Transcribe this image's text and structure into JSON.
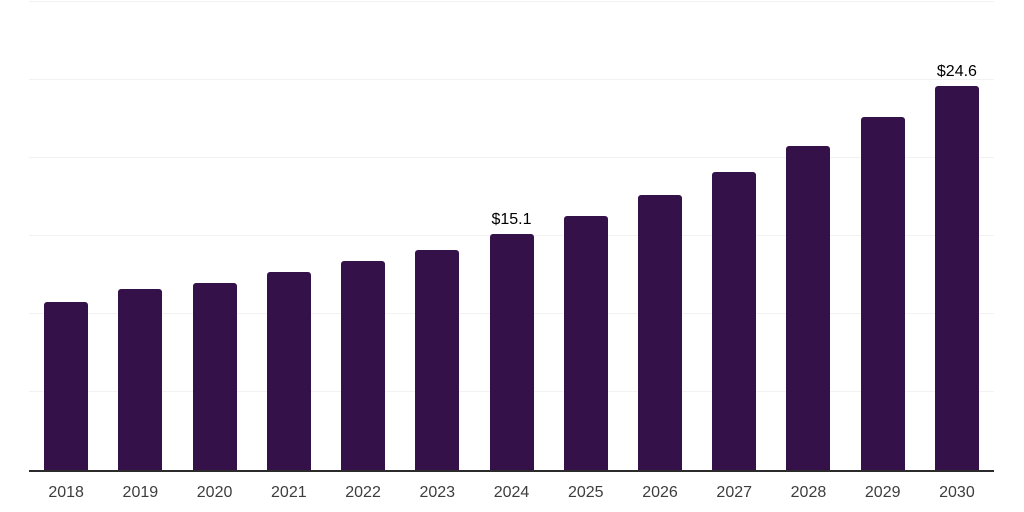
{
  "chart_data": {
    "type": "bar",
    "title": "",
    "categories": [
      "2018",
      "2019",
      "2020",
      "2021",
      "2022",
      "2023",
      "2024",
      "2025",
      "2026",
      "2027",
      "2028",
      "2029",
      "2030"
    ],
    "values": [
      10.8,
      11.6,
      12.0,
      12.7,
      13.4,
      14.1,
      15.1,
      16.3,
      17.6,
      19.1,
      20.8,
      22.6,
      24.6
    ],
    "data_labels": [
      "",
      "",
      "",
      "",
      "",
      "",
      "$15.1",
      "",
      "",
      "",
      "",
      "",
      "$24.6"
    ],
    "xlabel": "",
    "ylabel": "",
    "ylim": [
      0,
      30
    ],
    "gridline_values": [
      5,
      10,
      15,
      20,
      25,
      30
    ],
    "grid": "horizontal",
    "legend": "none",
    "colors": {
      "bar": "#341249",
      "gridline": "#f2f2f2",
      "axis_line": "#2b2b2b",
      "category_label": "#3d3d3d",
      "data_label": "#000000",
      "background": "#ffffff"
    }
  }
}
